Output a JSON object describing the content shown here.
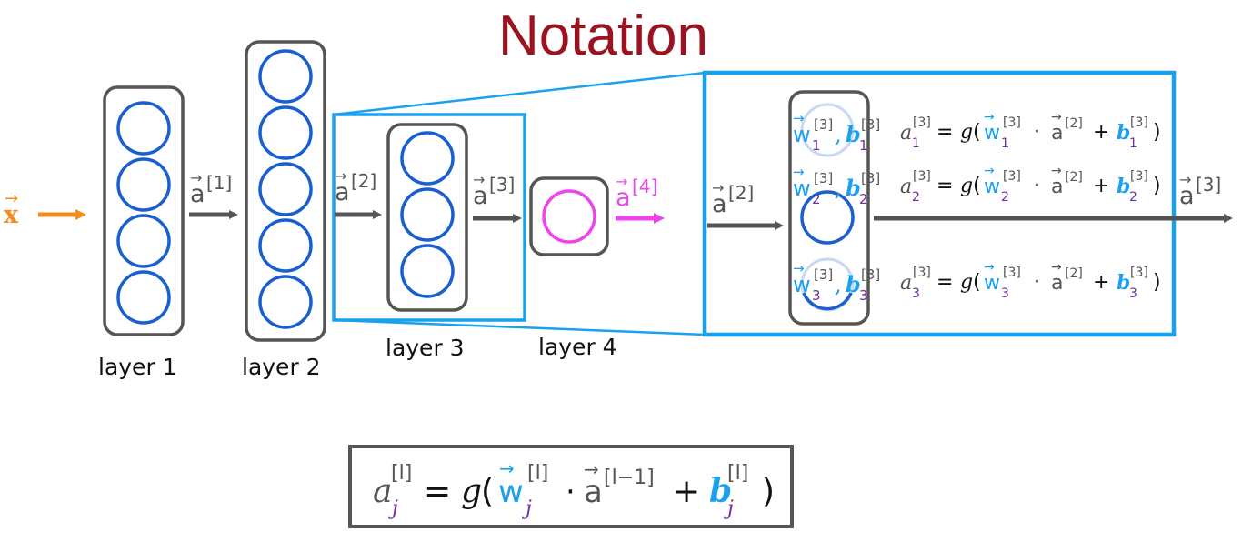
{
  "title": "Notation",
  "input_label": "x",
  "layer_labels": [
    "layer 1",
    "layer 2",
    "layer 3",
    "layer 4"
  ],
  "arrow_labels": {
    "a1": "[1]",
    "a2": "[2]",
    "a3": "[3]",
    "a4": "[4]",
    "zoom_in": "[2]",
    "zoom_out": "[3]"
  },
  "vector_letter": "a",
  "zoom_units": [
    {
      "w_sub": "1",
      "b_sub": "1",
      "a_sub": "1",
      "sup": "[3]",
      "prev_sup": "[2]"
    },
    {
      "w_sub": "2",
      "b_sub": "2",
      "a_sub": "2",
      "sup": "[3]",
      "prev_sup": "[2]"
    },
    {
      "w_sub": "3",
      "b_sub": "3",
      "a_sub": "3",
      "sup": "[3]",
      "prev_sup": "[2]"
    }
  ],
  "general_formula": {
    "a": "a",
    "j": "j",
    "l_sup": "[l]",
    "g": "g",
    "w": "w",
    "prev_sup": "[l−1]",
    "b": "b",
    "eq": "=",
    "plus": "+",
    "dot": "·"
  },
  "colors": {
    "title": "#9b1320",
    "input": "#f28c1e",
    "neuron": "#1a5fd0",
    "output_neuron": "#ee44ee",
    "highlight_box": "#1aa0ee",
    "param_blue": "#1aa0ee",
    "subscript_purple": "#7030a0",
    "arrow": "#555555"
  }
}
